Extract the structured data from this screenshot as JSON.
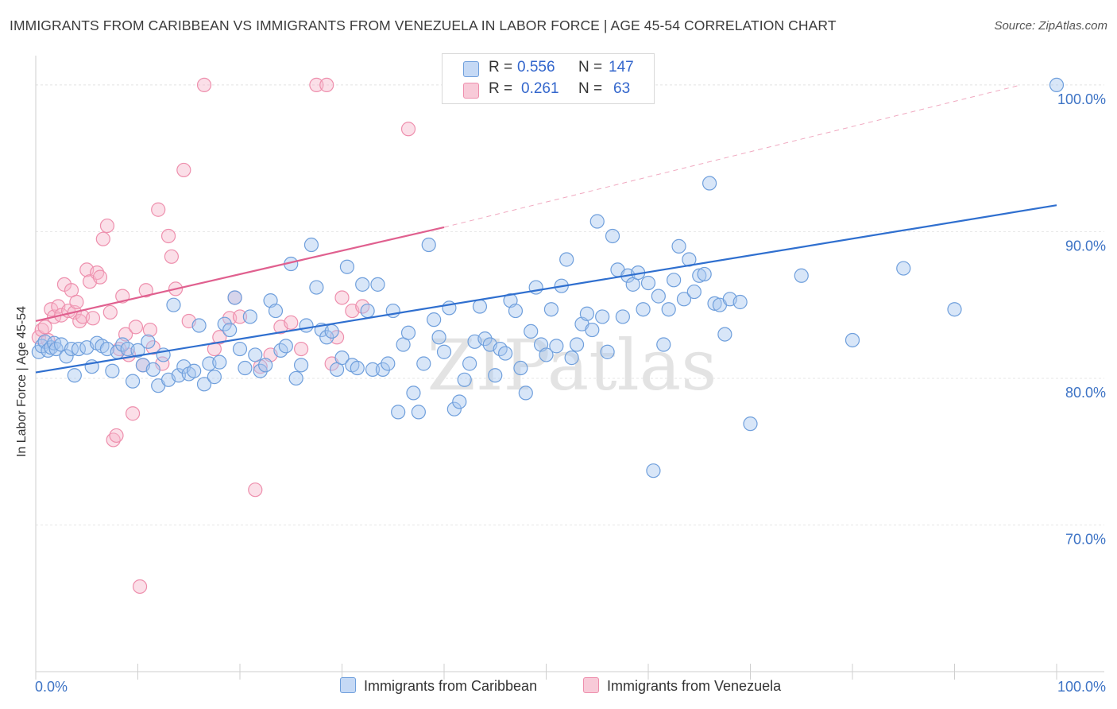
{
  "title": "IMMIGRANTS FROM CARIBBEAN VS IMMIGRANTS FROM VENEZUELA IN LABOR FORCE | AGE 45-54 CORRELATION CHART",
  "source": "Source: ZipAtlas.com",
  "watermark": "ZIPatlas",
  "legend": {
    "r_label": "R =",
    "n_label": "N =",
    "caribbean": {
      "r": "0.556",
      "n": "147"
    },
    "venezuela": {
      "r": "0.261",
      "n": "63"
    }
  },
  "colors": {
    "caribbean_fill": "#a9c8f0",
    "caribbean_stroke": "#6f9fdc",
    "caribbean_line": "#2f6fcf",
    "venezuela_fill": "#f6b8cb",
    "venezuela_stroke": "#ee8fad",
    "venezuela_line": "#e0608f",
    "axis_text": "#3d73c5"
  },
  "chart_data": {
    "type": "scatter",
    "xlabel": "",
    "ylabel": "In Labor Force | Age 45-54",
    "xlim": [
      0,
      100
    ],
    "ylim": [
      60,
      102
    ],
    "x_tick_labels": [
      "0.0%",
      "100.0%"
    ],
    "y_ticks": [
      70,
      80,
      90,
      100
    ],
    "y_tick_labels": [
      "70.0%",
      "80.0%",
      "90.0%",
      "100.0%"
    ],
    "grid": true,
    "series": [
      {
        "name": "Immigrants from Caribbean",
        "color": "#6f9fdc",
        "trend": {
          "x": [
            0,
            100
          ],
          "y": [
            80.4,
            91.8
          ]
        },
        "points": [
          [
            0.3,
            81.8
          ],
          [
            0.6,
            82.2
          ],
          [
            0.9,
            82.5
          ],
          [
            1.2,
            81.9
          ],
          [
            1.5,
            82.1
          ],
          [
            1.8,
            82.4
          ],
          [
            2.0,
            82.0
          ],
          [
            2.5,
            82.3
          ],
          [
            3.0,
            81.5
          ],
          [
            3.5,
            82.0
          ],
          [
            3.8,
            80.2
          ],
          [
            4.2,
            82.0
          ],
          [
            5.0,
            82.1
          ],
          [
            5.5,
            80.8
          ],
          [
            6.0,
            82.4
          ],
          [
            6.5,
            82.2
          ],
          [
            7.0,
            82.0
          ],
          [
            7.5,
            80.5
          ],
          [
            8.0,
            81.8
          ],
          [
            8.5,
            82.3
          ],
          [
            9.0,
            82.0
          ],
          [
            9.5,
            79.8
          ],
          [
            10.0,
            81.9
          ],
          [
            10.5,
            80.9
          ],
          [
            11.0,
            82.5
          ],
          [
            11.5,
            80.6
          ],
          [
            12.0,
            79.5
          ],
          [
            12.5,
            81.6
          ],
          [
            13.0,
            79.9
          ],
          [
            13.5,
            85.0
          ],
          [
            14.0,
            80.2
          ],
          [
            14.5,
            80.8
          ],
          [
            15.0,
            80.3
          ],
          [
            15.5,
            80.5
          ],
          [
            16.0,
            83.6
          ],
          [
            16.5,
            79.6
          ],
          [
            17.0,
            81.0
          ],
          [
            17.5,
            80.1
          ],
          [
            18.0,
            81.1
          ],
          [
            18.5,
            83.7
          ],
          [
            19.0,
            83.3
          ],
          [
            19.5,
            85.5
          ],
          [
            20.0,
            82.0
          ],
          [
            20.5,
            80.7
          ],
          [
            21.0,
            84.2
          ],
          [
            21.5,
            81.6
          ],
          [
            22.0,
            80.5
          ],
          [
            22.5,
            80.9
          ],
          [
            23.0,
            85.3
          ],
          [
            23.5,
            84.6
          ],
          [
            24.0,
            81.9
          ],
          [
            24.5,
            82.2
          ],
          [
            25.0,
            87.8
          ],
          [
            25.5,
            80.0
          ],
          [
            26.0,
            80.9
          ],
          [
            26.5,
            83.6
          ],
          [
            27.0,
            89.1
          ],
          [
            27.5,
            86.2
          ],
          [
            28.0,
            83.3
          ],
          [
            28.5,
            82.8
          ],
          [
            29.0,
            83.2
          ],
          [
            29.5,
            80.6
          ],
          [
            30.0,
            81.4
          ],
          [
            30.5,
            87.6
          ],
          [
            31.0,
            80.9
          ],
          [
            31.5,
            80.7
          ],
          [
            32.0,
            86.4
          ],
          [
            32.5,
            84.6
          ],
          [
            33.0,
            80.6
          ],
          [
            33.5,
            86.4
          ],
          [
            34.0,
            80.6
          ],
          [
            34.5,
            81.0
          ],
          [
            35.0,
            84.6
          ],
          [
            35.5,
            77.7
          ],
          [
            36.0,
            82.3
          ],
          [
            36.5,
            83.1
          ],
          [
            37.0,
            79.0
          ],
          [
            37.5,
            77.7
          ],
          [
            38.0,
            81.0
          ],
          [
            38.5,
            89.1
          ],
          [
            39.0,
            84.0
          ],
          [
            39.5,
            82.8
          ],
          [
            40.0,
            81.8
          ],
          [
            40.5,
            84.8
          ],
          [
            41.0,
            77.9
          ],
          [
            41.5,
            78.4
          ],
          [
            42.0,
            79.9
          ],
          [
            42.5,
            81.0
          ],
          [
            43.0,
            82.5
          ],
          [
            43.5,
            84.9
          ],
          [
            44.0,
            82.7
          ],
          [
            44.5,
            82.3
          ],
          [
            45.0,
            80.2
          ],
          [
            45.5,
            82.0
          ],
          [
            46.0,
            81.7
          ],
          [
            46.5,
            85.3
          ],
          [
            47.0,
            84.6
          ],
          [
            47.5,
            80.7
          ],
          [
            48.0,
            79.0
          ],
          [
            48.5,
            83.2
          ],
          [
            49.0,
            86.2
          ],
          [
            49.5,
            82.3
          ],
          [
            50.0,
            81.6
          ],
          [
            50.5,
            84.7
          ],
          [
            51.0,
            82.2
          ],
          [
            51.5,
            86.3
          ],
          [
            52.0,
            88.1
          ],
          [
            52.5,
            81.4
          ],
          [
            53.0,
            82.3
          ],
          [
            53.5,
            83.7
          ],
          [
            54.0,
            84.4
          ],
          [
            54.5,
            83.3
          ],
          [
            55.0,
            90.7
          ],
          [
            55.5,
            84.2
          ],
          [
            56.0,
            81.8
          ],
          [
            56.5,
            89.7
          ],
          [
            57.0,
            87.4
          ],
          [
            57.5,
            84.2
          ],
          [
            58.0,
            87.0
          ],
          [
            58.5,
            86.4
          ],
          [
            59.0,
            87.2
          ],
          [
            59.5,
            84.7
          ],
          [
            60.0,
            86.5
          ],
          [
            60.5,
            73.7
          ],
          [
            61.0,
            85.6
          ],
          [
            61.5,
            82.3
          ],
          [
            62.0,
            84.7
          ],
          [
            62.5,
            86.7
          ],
          [
            63.0,
            89.0
          ],
          [
            63.5,
            85.4
          ],
          [
            64.0,
            88.1
          ],
          [
            64.5,
            85.9
          ],
          [
            65.0,
            87.0
          ],
          [
            65.5,
            87.1
          ],
          [
            66.0,
            93.3
          ],
          [
            66.5,
            85.1
          ],
          [
            67.0,
            85.0
          ],
          [
            67.5,
            83.0
          ],
          [
            68.0,
            85.4
          ],
          [
            69.0,
            85.2
          ],
          [
            70.0,
            76.9
          ],
          [
            75.0,
            87.0
          ],
          [
            80.0,
            82.6
          ],
          [
            85.0,
            87.5
          ],
          [
            90.0,
            84.7
          ],
          [
            100.0,
            100.0
          ]
        ]
      },
      {
        "name": "Immigrants from Venezuela",
        "color": "#ee8fad",
        "trend": {
          "x": [
            0,
            40
          ],
          "y": [
            83.9,
            90.3
          ],
          "dashed_to": {
            "x": 96.5,
            "y": 100
          }
        },
        "points": [
          [
            0.3,
            82.8
          ],
          [
            0.6,
            83.3
          ],
          [
            0.9,
            83.5
          ],
          [
            1.2,
            82.6
          ],
          [
            1.5,
            84.7
          ],
          [
            1.8,
            84.2
          ],
          [
            2.2,
            84.9
          ],
          [
            2.5,
            84.3
          ],
          [
            2.8,
            86.4
          ],
          [
            3.2,
            84.6
          ],
          [
            3.5,
            86.0
          ],
          [
            3.8,
            84.5
          ],
          [
            4.0,
            85.2
          ],
          [
            4.3,
            83.9
          ],
          [
            4.6,
            84.2
          ],
          [
            5.0,
            87.4
          ],
          [
            5.3,
            86.6
          ],
          [
            5.6,
            84.1
          ],
          [
            6.0,
            87.2
          ],
          [
            6.3,
            86.9
          ],
          [
            6.6,
            89.5
          ],
          [
            7.0,
            90.4
          ],
          [
            7.3,
            84.5
          ],
          [
            7.6,
            75.8
          ],
          [
            7.9,
            76.1
          ],
          [
            8.2,
            82.0
          ],
          [
            8.5,
            85.6
          ],
          [
            8.8,
            83.0
          ],
          [
            9.1,
            81.6
          ],
          [
            9.5,
            77.6
          ],
          [
            9.8,
            83.5
          ],
          [
            10.2,
            65.8
          ],
          [
            10.5,
            80.9
          ],
          [
            10.8,
            86.0
          ],
          [
            11.2,
            83.3
          ],
          [
            11.5,
            82.1
          ],
          [
            12.0,
            91.5
          ],
          [
            12.4,
            81.0
          ],
          [
            13.0,
            89.7
          ],
          [
            13.3,
            88.3
          ],
          [
            13.7,
            86.1
          ],
          [
            14.5,
            94.2
          ],
          [
            15.0,
            83.9
          ],
          [
            16.5,
            100.0
          ],
          [
            17.5,
            82.0
          ],
          [
            18.0,
            82.8
          ],
          [
            19.0,
            84.1
          ],
          [
            19.5,
            85.5
          ],
          [
            20.0,
            84.2
          ],
          [
            21.5,
            72.4
          ],
          [
            22.0,
            80.8
          ],
          [
            23.0,
            81.6
          ],
          [
            24.0,
            83.5
          ],
          [
            25.0,
            83.8
          ],
          [
            26.0,
            82.0
          ],
          [
            27.5,
            100.0
          ],
          [
            28.5,
            100.0
          ],
          [
            29.0,
            81.0
          ],
          [
            29.5,
            82.8
          ],
          [
            30.0,
            85.5
          ],
          [
            31.0,
            84.6
          ],
          [
            32.0,
            84.9
          ],
          [
            36.5,
            97.0
          ]
        ]
      }
    ]
  }
}
